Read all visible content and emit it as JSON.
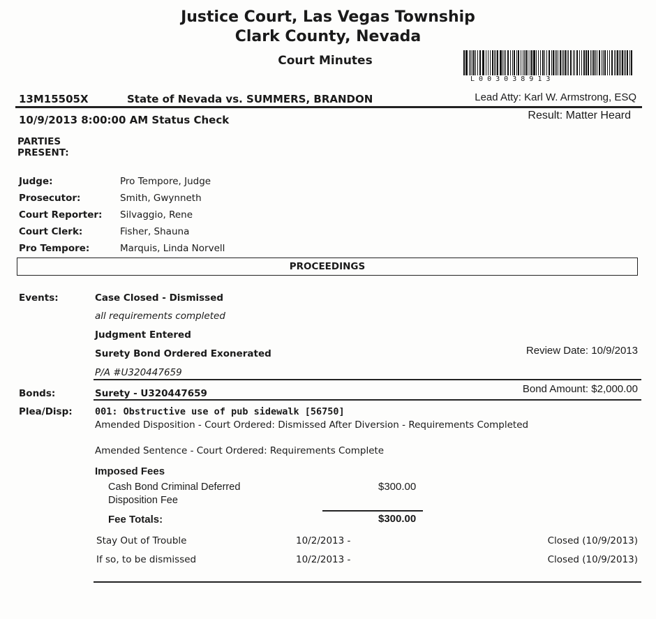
{
  "header": {
    "title1": "Justice Court, Las Vegas Township",
    "title2": "Clark County, Nevada",
    "subtitle": "Court Minutes",
    "barcode_text": "L 0 0 3 0 3 8 9 1 3"
  },
  "case": {
    "number": "13M15505X",
    "caption": "State of Nevada vs. SUMMERS, BRANDON",
    "lead_atty": "Lead Atty: Karl W. Armstrong, ESQ",
    "hearing": "10/9/2013 8:00:00 AM  Status Check",
    "result": "Result: Matter Heard"
  },
  "parties": {
    "heading": "PARTIES\nPRESENT:",
    "heading1": "PARTIES",
    "heading2": "PRESENT:",
    "rows": [
      {
        "label": "Judge:",
        "value": "Pro Tempore, Judge"
      },
      {
        "label": "Prosecutor:",
        "value": "Smith, Gwynneth"
      },
      {
        "label": "Court Reporter:",
        "value": "Silvaggio, Rene"
      },
      {
        "label": "Court Clerk:",
        "value": "Fisher, Shauna"
      },
      {
        "label": "Pro Tempore:",
        "value": "Marquis, Linda Norvell"
      }
    ]
  },
  "proceedings": {
    "heading": "PROCEEDINGS",
    "events_label": "Events:",
    "events": [
      "Case Closed - Dismissed",
      "all requirements completed",
      "Judgment  Entered",
      "Surety Bond Ordered Exonerated",
      "P/A #U320447659"
    ],
    "review_date": "Review Date: 10/9/2013",
    "bonds_label": "Bonds:",
    "bond": "Surety - U320447659",
    "bond_amount": "Bond Amount: $2,000.00",
    "plea_label": "Plea/Disp:",
    "charge": "001: Obstructive use of pub sidewalk [56750]",
    "amended_disposition": "Amended Disposition - Court Ordered: Dismissed After Diversion - Requirements Completed",
    "amended_sentence": "Amended Sentence - Court Ordered: Requirements Complete",
    "fees_heading": "Imposed Fees",
    "fee_name1": "Cash Bond Criminal Deferred",
    "fee_name2": "Disposition Fee",
    "fee_amount": "$300.00",
    "fee_totals_label": "Fee Totals:",
    "fee_totals": "$300.00",
    "conditions": [
      {
        "name": "Stay Out of Trouble",
        "start": "10/2/2013 -",
        "status": "Closed (10/9/2013)"
      },
      {
        "name": "If so, to be dismissed",
        "start": "10/2/2013 -",
        "status": "Closed (10/9/2013)"
      }
    ]
  }
}
